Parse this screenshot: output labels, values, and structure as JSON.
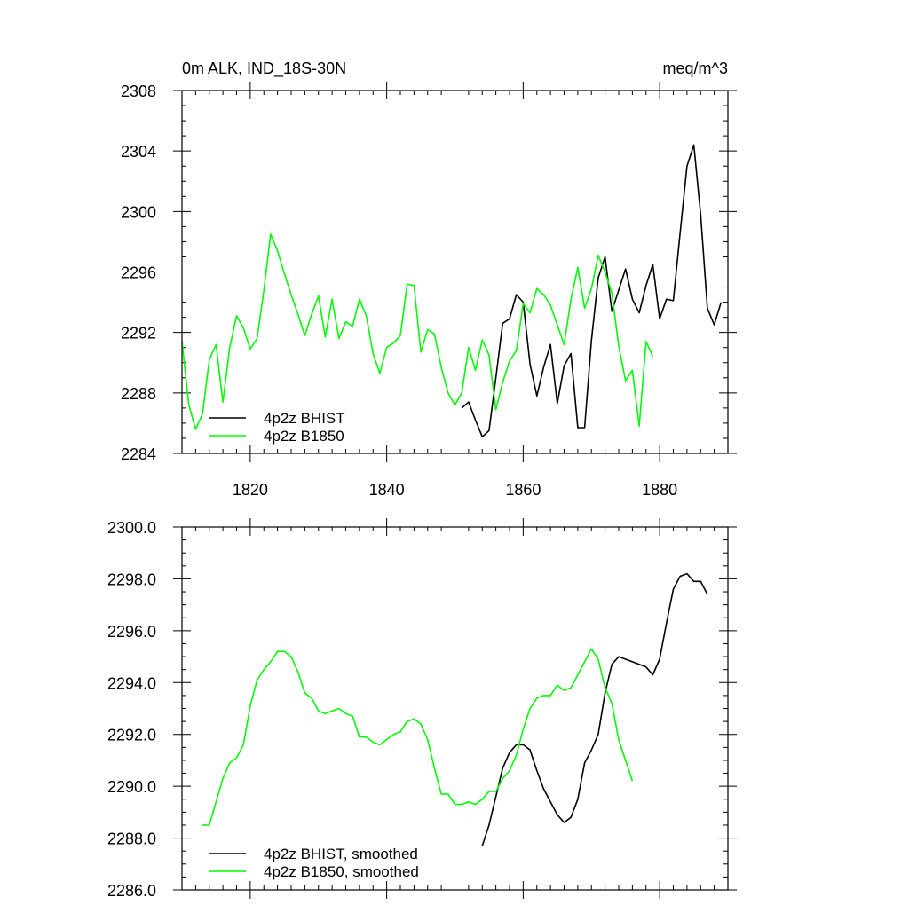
{
  "colors": {
    "bhist": "#000000",
    "b1850": "#00ff00"
  },
  "panels": [
    {
      "title_left": "0m ALK, IND_18S-30N",
      "title_right": "meq/m^3",
      "legend": [
        "4p2z BHIST",
        "4p2z B1850"
      ]
    },
    {
      "title_left": "",
      "title_right": "",
      "legend": [
        "4p2z BHIST, smoothed",
        "4p2z B1850, smoothed"
      ]
    }
  ],
  "chart_data": [
    {
      "type": "line",
      "title": "0m ALK, IND_18S-30N",
      "units": "meq/m^3",
      "xlim": [
        1810,
        1890
      ],
      "ylim": [
        2284,
        2308
      ],
      "xticks": [
        "1820",
        "1840",
        "1860",
        "1880"
      ],
      "xtick_values": [
        1820,
        1840,
        1860,
        1880
      ],
      "yticks": [
        "2284",
        "2288",
        "2292",
        "2296",
        "2300",
        "2304",
        "2308"
      ],
      "ytick_values": [
        2284,
        2288,
        2292,
        2296,
        2300,
        2304,
        2308
      ],
      "legend_position": "bottom-left",
      "series": [
        {
          "name": "4p2z BHIST",
          "color": "#000000",
          "x": [
            1851,
            1852,
            1853,
            1854,
            1855,
            1856,
            1857,
            1858,
            1859,
            1860,
            1861,
            1862,
            1863,
            1864,
            1865,
            1866,
            1867,
            1868,
            1869,
            1870,
            1871,
            1872,
            1873,
            1874,
            1875,
            1876,
            1877,
            1878,
            1879,
            1880,
            1881,
            1882,
            1883,
            1884,
            1885,
            1886,
            1887,
            1888,
            1889
          ],
          "y": [
            2287.0,
            2287.4,
            2286.2,
            2285.1,
            2285.5,
            2289.0,
            2292.6,
            2292.9,
            2294.5,
            2294.0,
            2289.9,
            2287.8,
            2289.7,
            2291.2,
            2287.3,
            2289.8,
            2290.6,
            2285.7,
            2285.7,
            2291.5,
            2295.6,
            2297.0,
            2293.4,
            2294.8,
            2296.2,
            2294.2,
            2293.3,
            2295.1,
            2296.5,
            2292.9,
            2294.2,
            2294.1,
            2298.6,
            2303.0,
            2304.4,
            2299.8,
            2293.6,
            2292.5,
            2294.0
          ]
        },
        {
          "name": "4p2z B1850",
          "color": "#00ff00",
          "x": [
            1810,
            1811,
            1812,
            1813,
            1814,
            1815,
            1816,
            1817,
            1818,
            1819,
            1820,
            1821,
            1822,
            1823,
            1824,
            1825,
            1826,
            1827,
            1828,
            1829,
            1830,
            1831,
            1832,
            1833,
            1834,
            1835,
            1836,
            1837,
            1838,
            1839,
            1840,
            1841,
            1842,
            1843,
            1844,
            1845,
            1846,
            1847,
            1848,
            1849,
            1850,
            1851,
            1852,
            1853,
            1854,
            1855,
            1856,
            1857,
            1858,
            1859,
            1860,
            1861,
            1862,
            1863,
            1864,
            1865,
            1866,
            1867,
            1868,
            1869,
            1870,
            1871,
            1872,
            1873,
            1874,
            1875,
            1876,
            1877,
            1878,
            1879
          ],
          "y": [
            2291.4,
            2287.2,
            2285.6,
            2286.6,
            2290.2,
            2291.2,
            2287.4,
            2291.0,
            2293.1,
            2292.3,
            2290.9,
            2291.6,
            2294.8,
            2298.5,
            2297.4,
            2295.9,
            2294.5,
            2293.2,
            2291.8,
            2293.2,
            2294.4,
            2291.7,
            2294.2,
            2291.6,
            2292.7,
            2292.4,
            2294.2,
            2293.1,
            2290.6,
            2289.3,
            2291.0,
            2291.3,
            2291.8,
            2295.2,
            2295.1,
            2290.7,
            2292.2,
            2291.9,
            2289.7,
            2288.0,
            2287.2,
            2288.0,
            2291.0,
            2289.5,
            2291.5,
            2290.5,
            2286.9,
            2288.7,
            2290.1,
            2290.8,
            2293.9,
            2293.3,
            2294.9,
            2294.5,
            2293.8,
            2292.5,
            2291.2,
            2294.2,
            2296.3,
            2293.6,
            2294.9,
            2297.1,
            2296.0,
            2294.6,
            2291.1,
            2288.8,
            2289.5,
            2285.8,
            2291.4,
            2290.4
          ]
        }
      ]
    },
    {
      "type": "line",
      "xlim": [
        1810,
        1890
      ],
      "ylim": [
        2286.0,
        2300.0
      ],
      "xtick_values": [
        1820,
        1840,
        1860,
        1880
      ],
      "yticks": [
        "2286.0",
        "2288.0",
        "2290.0",
        "2292.0",
        "2294.0",
        "2296.0",
        "2298.0",
        "2300.0"
      ],
      "ytick_values": [
        2286,
        2288,
        2290,
        2292,
        2294,
        2296,
        2298,
        2300
      ],
      "legend_position": "bottom-left",
      "series": [
        {
          "name": "4p2z BHIST, smoothed",
          "color": "#000000",
          "x": [
            1854,
            1855,
            1856,
            1857,
            1858,
            1859,
            1860,
            1861,
            1862,
            1863,
            1864,
            1865,
            1866,
            1867,
            1868,
            1869,
            1870,
            1871,
            1872,
            1873,
            1874,
            1875,
            1876,
            1877,
            1878,
            1879,
            1880,
            1881,
            1882,
            1883,
            1884,
            1885,
            1886,
            1887
          ],
          "y": [
            2287.7,
            2288.5,
            2289.6,
            2290.7,
            2291.3,
            2291.6,
            2291.6,
            2291.4,
            2290.6,
            2289.9,
            2289.4,
            2288.9,
            2288.6,
            2288.8,
            2289.5,
            2290.9,
            2291.4,
            2292.0,
            2293.6,
            2294.7,
            2295.0,
            2294.9,
            2294.8,
            2294.7,
            2294.6,
            2294.3,
            2294.9,
            2296.3,
            2297.6,
            2298.1,
            2298.2,
            2297.9,
            2297.9,
            2297.4
          ]
        },
        {
          "name": "4p2z B1850, smoothed",
          "color": "#00ff00",
          "x": [
            1813,
            1814,
            1815,
            1816,
            1817,
            1818,
            1819,
            1820,
            1821,
            1822,
            1823,
            1824,
            1825,
            1826,
            1827,
            1828,
            1829,
            1830,
            1831,
            1832,
            1833,
            1834,
            1835,
            1836,
            1837,
            1838,
            1839,
            1840,
            1841,
            1842,
            1843,
            1844,
            1845,
            1846,
            1847,
            1848,
            1849,
            1850,
            1851,
            1852,
            1853,
            1854,
            1855,
            1856,
            1857,
            1858,
            1859,
            1860,
            1861,
            1862,
            1863,
            1864,
            1865,
            1866,
            1867,
            1868,
            1869,
            1870,
            1871,
            1872,
            1873,
            1874,
            1875,
            1876
          ],
          "y": [
            2288.5,
            2288.5,
            2289.4,
            2290.3,
            2290.9,
            2291.1,
            2291.6,
            2293.1,
            2294.1,
            2294.5,
            2294.8,
            2295.2,
            2295.2,
            2295.0,
            2294.4,
            2293.6,
            2293.4,
            2292.9,
            2292.8,
            2292.9,
            2293.0,
            2292.8,
            2292.7,
            2291.9,
            2291.9,
            2291.7,
            2291.6,
            2291.8,
            2292.0,
            2292.1,
            2292.5,
            2292.6,
            2292.4,
            2291.8,
            2290.7,
            2289.7,
            2289.7,
            2289.3,
            2289.3,
            2289.4,
            2289.3,
            2289.5,
            2289.8,
            2289.8,
            2290.3,
            2290.6,
            2291.2,
            2292.2,
            2293.0,
            2293.4,
            2293.5,
            2293.5,
            2293.9,
            2293.7,
            2293.8,
            2294.3,
            2294.8,
            2295.3,
            2294.9,
            2293.8,
            2293.2,
            2291.8,
            2291.0,
            2290.2
          ]
        }
      ]
    }
  ]
}
